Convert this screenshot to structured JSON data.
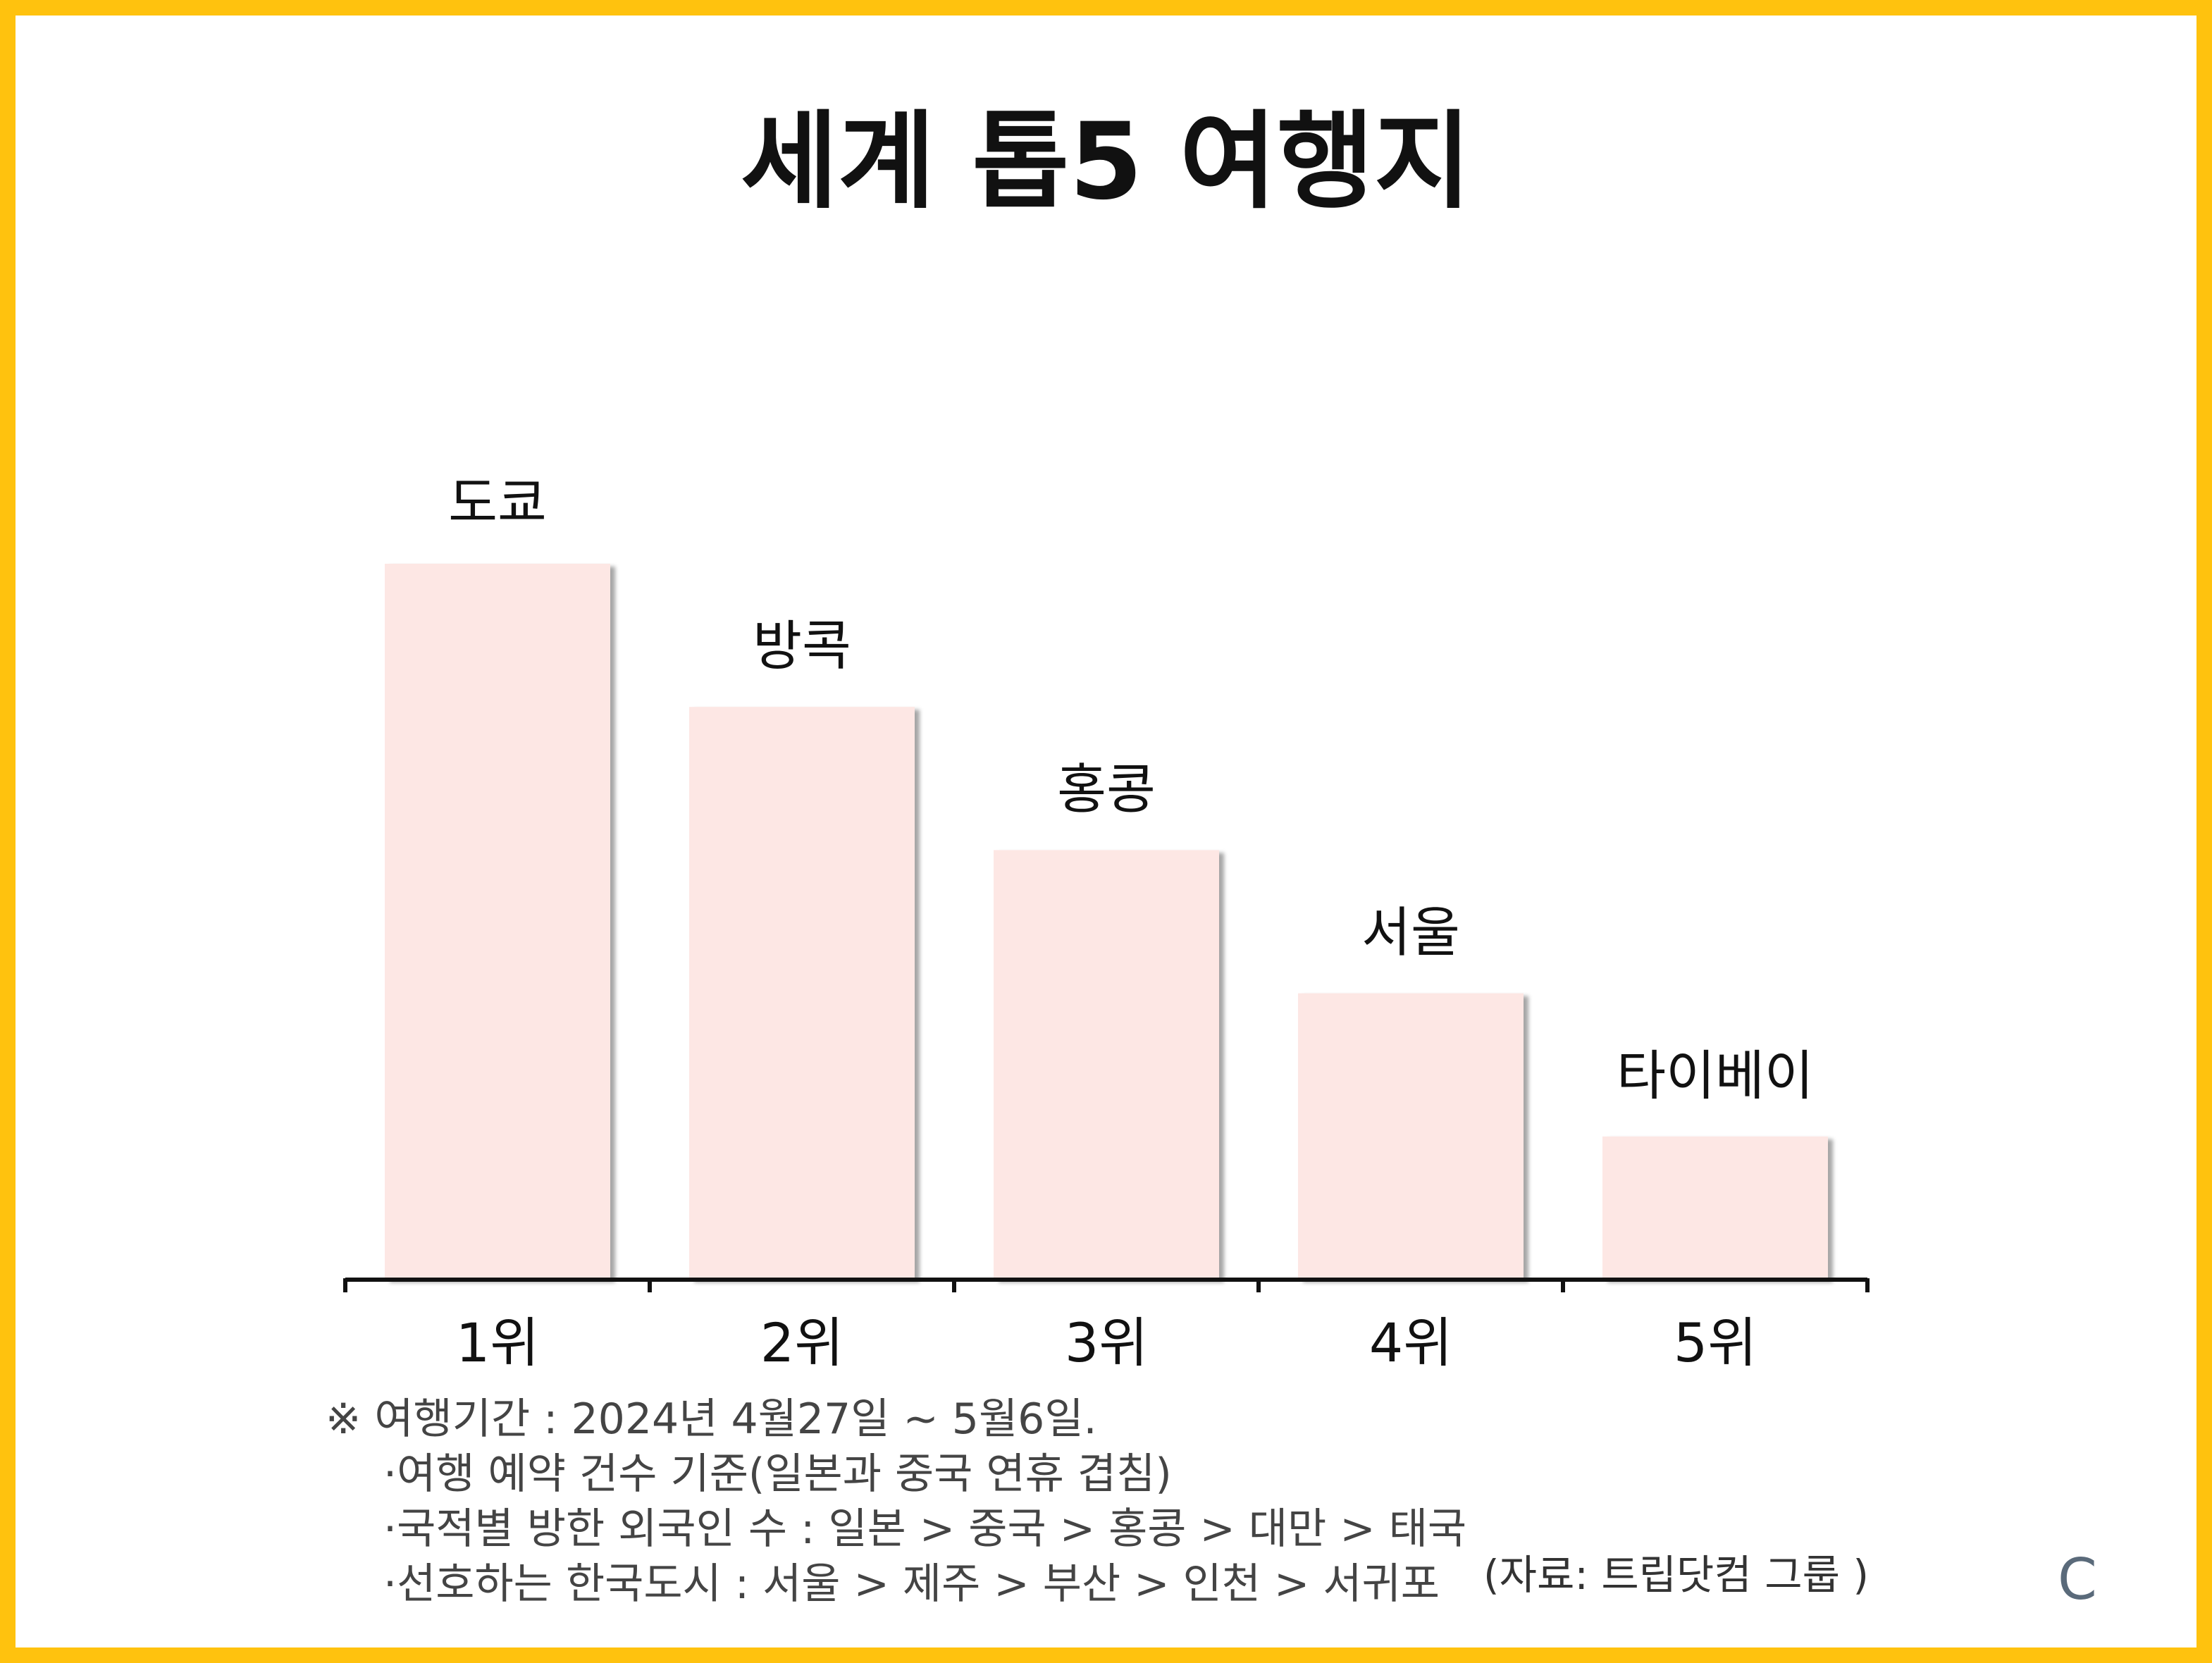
{
  "title": "세계 톱5 여행지",
  "chart_data": {
    "type": "bar",
    "categories": [
      "1위",
      "2위",
      "3위",
      "4위",
      "5위"
    ],
    "data_labels": [
      "도쿄",
      "방콕",
      "홍콩",
      "서울",
      "타이베이"
    ],
    "values": [
      5,
      4,
      3,
      2,
      1
    ],
    "ylim": [
      0,
      5
    ],
    "bar_color": "#FDE7E4",
    "axis_color": "#111111",
    "grid": false,
    "title": "세계 톱5 여행지",
    "xlabel": "",
    "ylabel": ""
  },
  "notes": {
    "main": "※ 여행기간 : 2024년 4월27일 ~ 5월6일.",
    "items": [
      "·여행 예약 건수 기준(일본과 중국 연휴 겹침)",
      "·국적별 방한 외국인 수 : 일본 > 중국 > 홍콩 > 대만 > 태국",
      "·선호하는 한국도시 : 서울 > 제주 > 부산 > 인천 > 서귀포"
    ]
  },
  "source": "(자료: 트립닷컴 그룹 )",
  "brand_mark": "C",
  "colors": {
    "border": "#FFC20E",
    "background": "#FFFFFF"
  }
}
